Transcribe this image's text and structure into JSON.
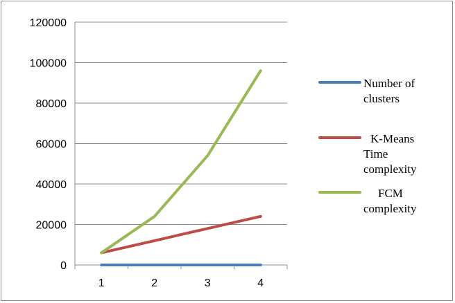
{
  "chart_data": {
    "type": "line",
    "categories": [
      "1",
      "2",
      "3",
      "4"
    ],
    "series": [
      {
        "name": "Number of clusters",
        "values": [
          1,
          2,
          3,
          4
        ],
        "color": "#4a7ebb"
      },
      {
        "name": "K-Means Time complexity",
        "values": [
          6000,
          12000,
          18000,
          24000
        ],
        "color": "#be4b48"
      },
      {
        "name": "FCM complexity",
        "values": [
          6000,
          24000,
          54000,
          96000
        ],
        "color": "#98b954"
      }
    ],
    "y_ticks": [
      "0",
      "20000",
      "40000",
      "60000",
      "80000",
      "100000",
      "120000"
    ],
    "ylim": [
      0,
      120000
    ],
    "grid": "horizontal",
    "legend_position": "right",
    "legend_lines": [
      [
        "Number of",
        "clusters"
      ],
      [
        "K-Means",
        "Time",
        "complexity"
      ],
      [
        "FCM",
        "complexity"
      ]
    ]
  }
}
